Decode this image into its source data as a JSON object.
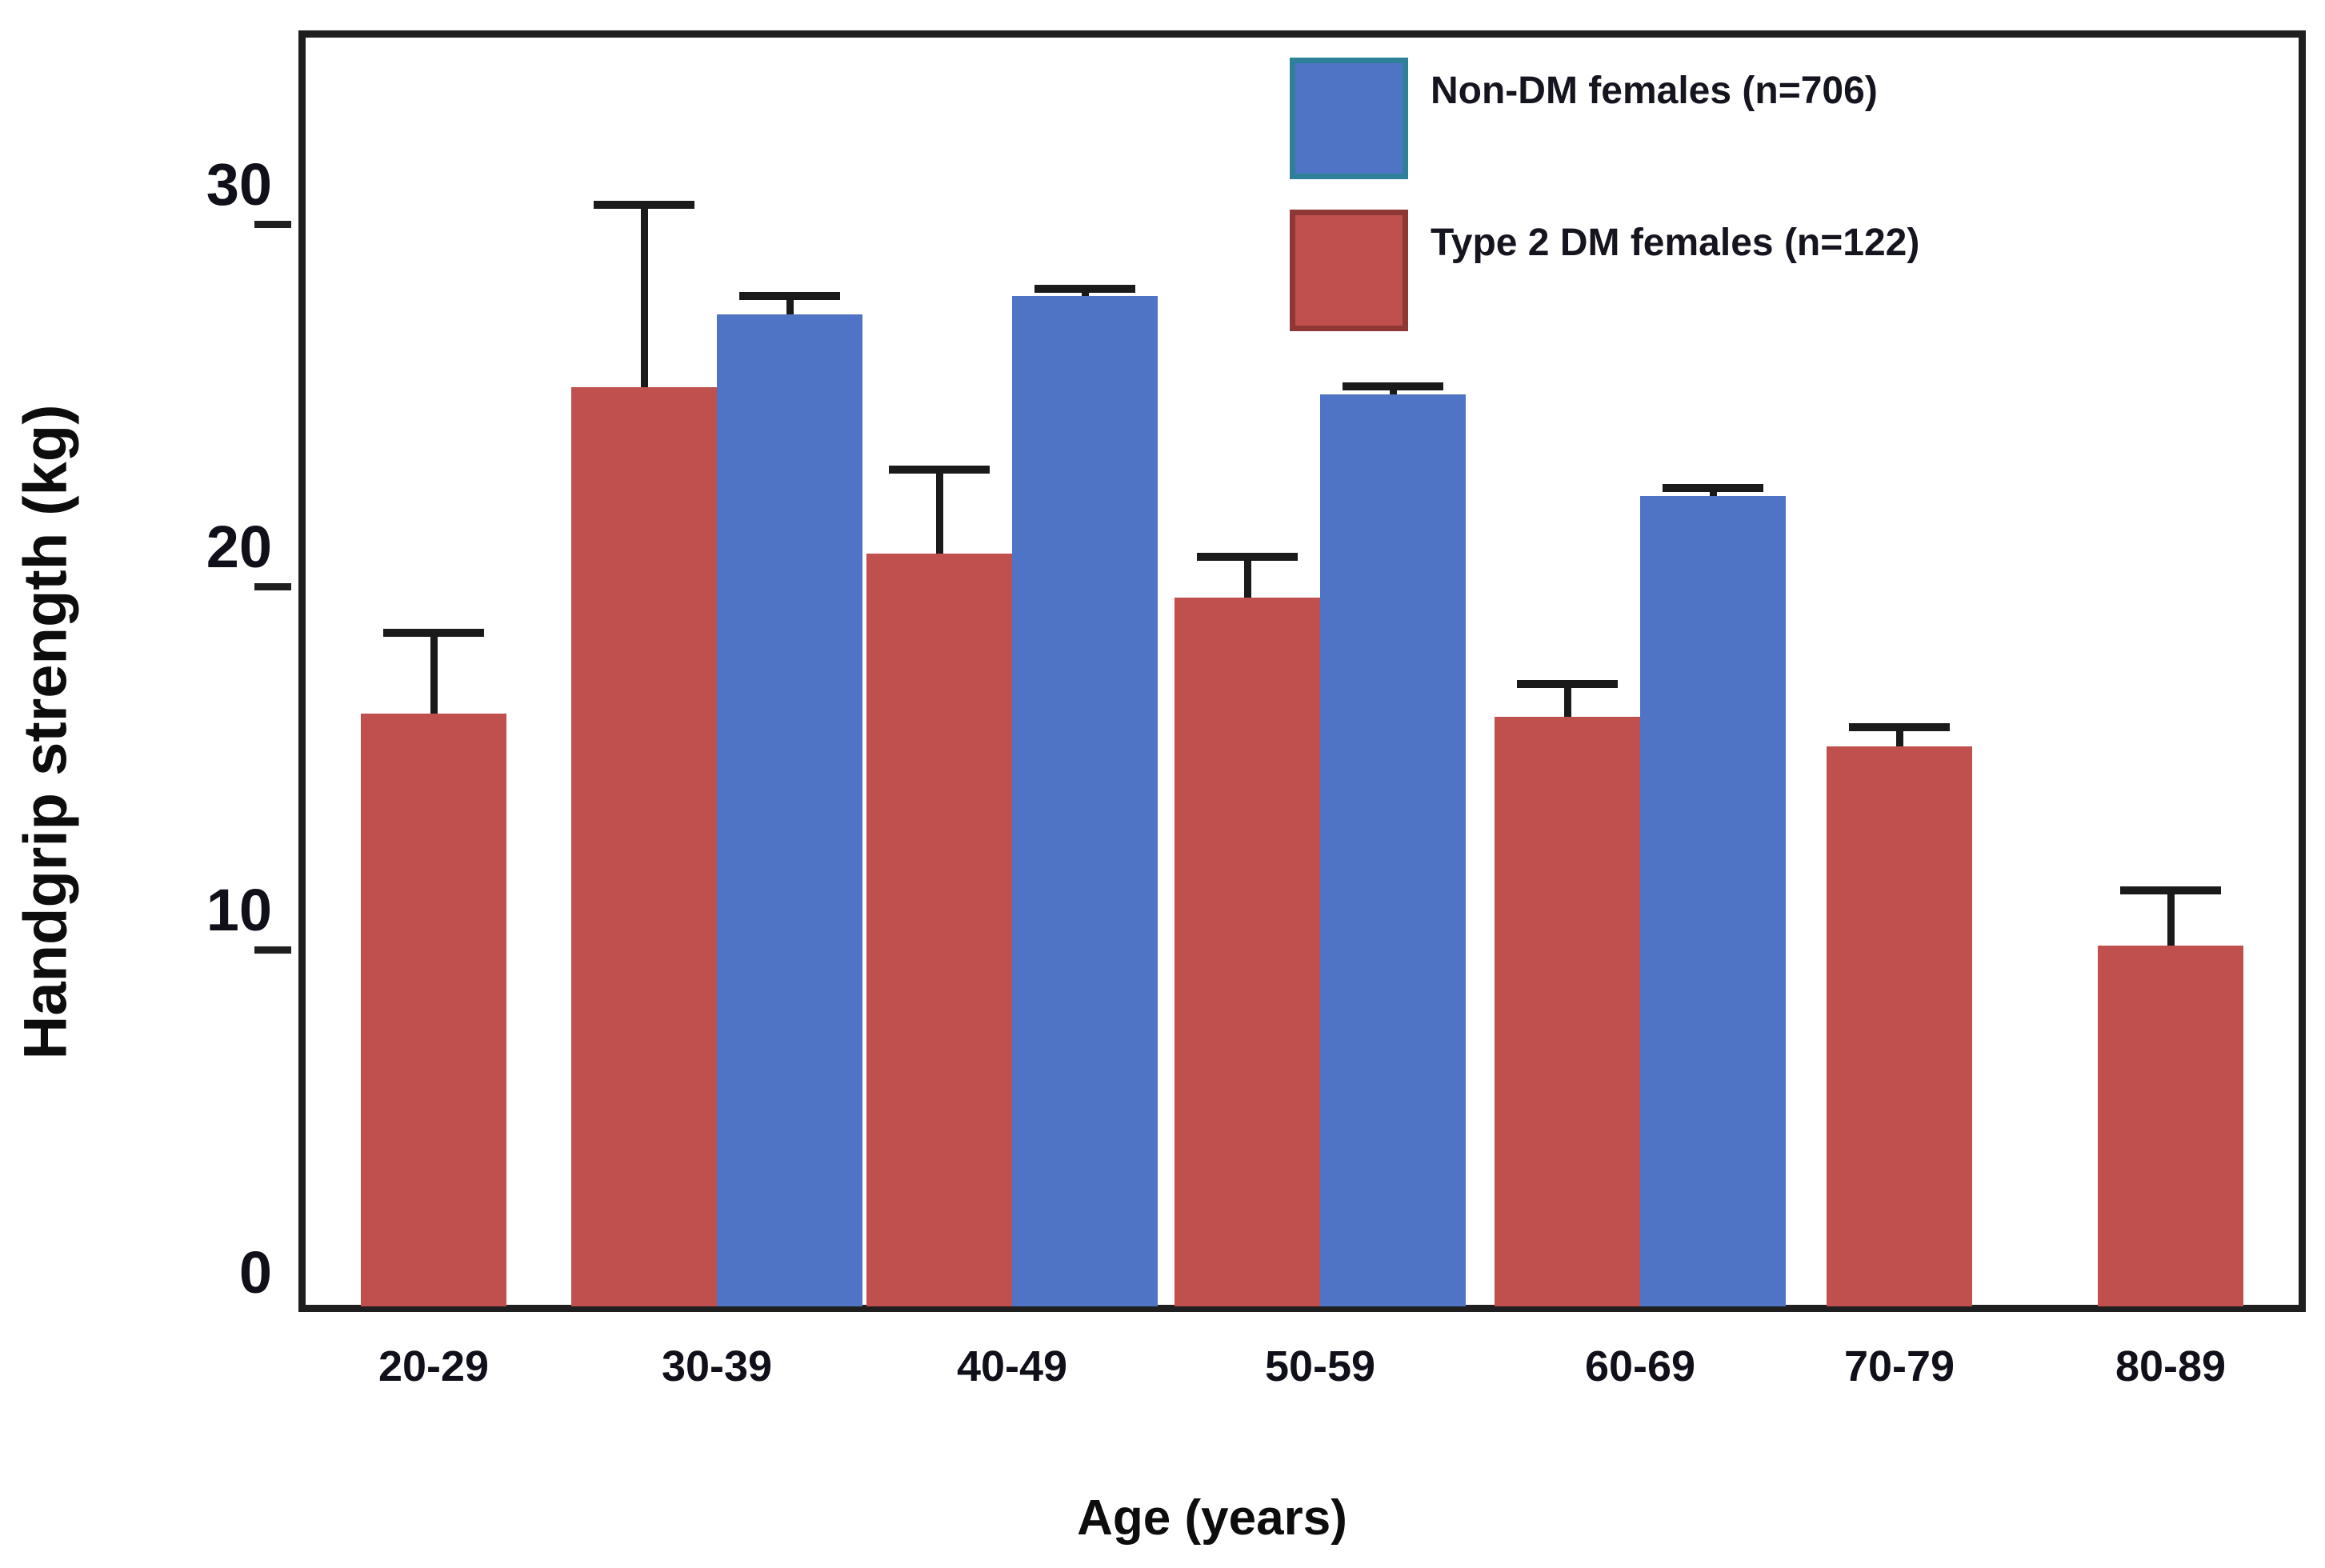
{
  "chart_data": {
    "type": "bar",
    "title": "",
    "xlabel": "Age (years)",
    "ylabel": "Handgrip strength (kg)",
    "categories": [
      "20-29",
      "30-39",
      "40-49",
      "50-59",
      "60-69",
      "70-79",
      "80-89"
    ],
    "series": [
      {
        "name": "Non-DM females (n=706)",
        "key": "non-dm",
        "color": "#4f74c5",
        "border_color": "#2e8099",
        "values": [
          null,
          27.5,
          28.0,
          25.3,
          22.5,
          null,
          null
        ],
        "errors_upper": [
          null,
          0.6,
          0.3,
          0.3,
          0.3,
          null,
          null
        ]
      },
      {
        "name": "Type 2 DM females  (n=122)",
        "key": "type2-dm",
        "color": "#bf504d",
        "border_color": "#8f3734",
        "values": [
          16.5,
          25.5,
          20.9,
          19.7,
          16.4,
          15.6,
          10.1
        ],
        "errors_upper": [
          2.3,
          5.1,
          2.4,
          1.2,
          1.0,
          0.6,
          1.6
        ]
      }
    ],
    "y_ticks": [
      0,
      10,
      20,
      30
    ],
    "ylim": [
      0,
      35.3
    ],
    "grid": false,
    "legend_position": "top-right",
    "error_bars": "upper-only, black caps",
    "axis_color": "#1f1f1f",
    "background": "#ffffff"
  }
}
